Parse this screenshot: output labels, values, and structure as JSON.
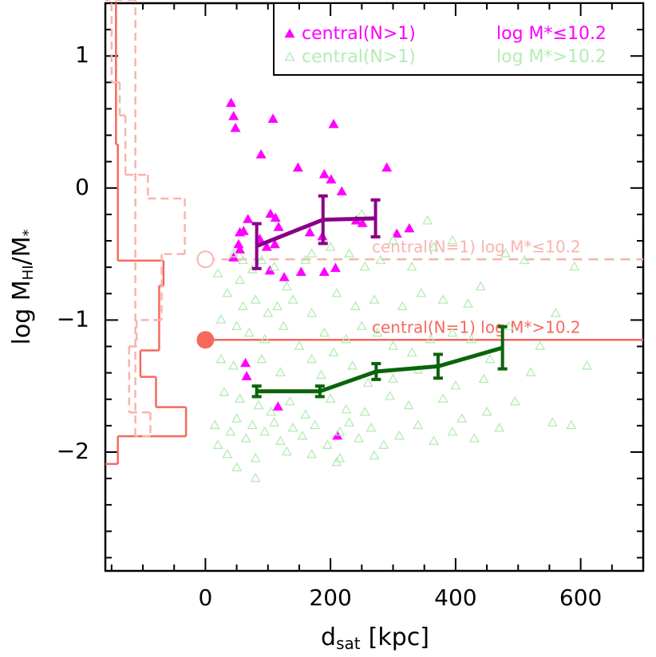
{
  "chart_data": {
    "type": "scatter",
    "xlabel": {
      "main": "d",
      "sub": "sat",
      "unit": "[kpc]"
    },
    "ylabel": {
      "main": "log M",
      "sub1": "HI",
      "mid": "/M",
      "sub2": "*"
    },
    "xlim": [
      -160,
      700
    ],
    "ylim": [
      -2.9,
      1.4
    ],
    "xticks": [
      0,
      200,
      400,
      600
    ],
    "yticks": [
      {
        "value": -2,
        "label": "−2"
      },
      {
        "value": -1,
        "label": "−1"
      },
      0,
      1
    ],
    "xminor_ticks": [
      -150,
      -100,
      -50,
      50,
      100,
      150,
      250,
      300,
      350,
      450,
      500,
      550,
      650
    ],
    "yminor_ticks": [
      -2.8,
      -2.6,
      -2.4,
      -2.2,
      -1.8,
      -1.6,
      -1.4,
      -1.2,
      -0.8,
      -0.6,
      -0.4,
      -0.2,
      0.2,
      0.4,
      0.6,
      0.8,
      1.2
    ],
    "series": [
      {
        "name": "central(N>1)",
        "group_label": "log M*≤10.2",
        "marker": "filled-triangle",
        "color": "#ff00ff",
        "x": [
          41,
          45,
          48,
          89,
          205,
          148,
          108,
          190,
          201,
          290,
          218,
          68,
          61,
          104,
          112,
          117,
          87,
          55,
          53,
          55,
          45,
          98,
          111,
          167,
          187,
          241,
          251,
          306,
          326,
          103,
          126,
          153,
          190,
          208,
          64,
          66,
          116,
          211
        ],
        "values": [
          0.64,
          0.54,
          0.45,
          0.25,
          0.48,
          0.15,
          0.52,
          0.1,
          0.06,
          0.15,
          -0.03,
          -0.24,
          -0.33,
          -0.2,
          -0.23,
          -0.3,
          -0.39,
          -0.34,
          -0.43,
          -0.47,
          -0.53,
          -0.45,
          -0.43,
          -0.34,
          -0.37,
          -0.25,
          -0.27,
          -0.35,
          -0.31,
          -0.63,
          -0.68,
          -0.64,
          -0.64,
          -0.61,
          -1.33,
          -1.43,
          -1.66,
          -1.88
        ]
      },
      {
        "name": "central(N>1)",
        "group_label": "log M*>10.2",
        "marker": "open-triangle",
        "color": "#b4ecb4",
        "x": [
          45,
          60,
          55,
          75,
          90,
          110,
          130,
          160,
          170,
          200,
          230,
          255,
          280,
          300,
          330,
          250,
          355,
          365,
          395,
          480,
          510,
          590,
          20,
          35,
          60,
          80,
          100,
          115,
          140,
          170,
          210,
          240,
          270,
          315,
          345,
          380,
          420,
          440,
          560,
          25,
          50,
          70,
          95,
          125,
          150,
          190,
          205,
          225,
          250,
          275,
          300,
          330,
          360,
          395,
          425,
          455,
          485,
          535,
          25,
          45,
          90,
          120,
          170,
          185,
          235,
          260,
          300,
          340,
          400,
          445,
          520,
          610,
          30,
          55,
          85,
          105,
          135,
          160,
          200,
          225,
          255,
          295,
          325,
          380,
          410,
          450,
          495,
          555,
          585,
          15,
          40,
          50,
          65,
          75,
          95,
          110,
          120,
          140,
          155,
          175,
          195,
          215,
          230,
          245,
          265,
          285,
          310,
          340,
          365,
          395,
          430,
          470,
          20,
          35,
          80,
          130,
          170,
          215,
          270,
          50,
          210,
          80
        ],
        "values": [
          -0.5,
          -0.55,
          -0.7,
          -0.62,
          -0.55,
          -0.6,
          -0.75,
          -0.55,
          -0.5,
          -0.45,
          -0.5,
          -0.6,
          -0.55,
          -0.4,
          -0.6,
          -0.2,
          -0.25,
          -0.45,
          -0.4,
          -0.5,
          -0.55,
          -0.6,
          -0.65,
          -0.8,
          -0.9,
          -0.85,
          -0.95,
          -0.9,
          -0.85,
          -0.95,
          -0.8,
          -0.9,
          -0.85,
          -0.9,
          -0.8,
          -0.85,
          -0.88,
          -0.75,
          -0.95,
          -1.0,
          -1.05,
          -1.1,
          -1.15,
          -1.05,
          -1.2,
          -1.1,
          -1.25,
          -1.15,
          -1.05,
          -1.1,
          -1.2,
          -1.25,
          -1.15,
          -1.1,
          -1.15,
          -1.3,
          -1.05,
          -1.2,
          -1.3,
          -1.35,
          -1.3,
          -1.4,
          -1.3,
          -1.42,
          -1.35,
          -1.48,
          -1.45,
          -1.38,
          -1.5,
          -1.45,
          -1.4,
          -1.35,
          -1.55,
          -1.6,
          -1.65,
          -1.7,
          -1.62,
          -1.72,
          -1.6,
          -1.68,
          -1.7,
          -1.58,
          -1.65,
          -1.6,
          -1.75,
          -1.7,
          -1.62,
          -1.78,
          -1.8,
          -1.8,
          -1.85,
          -1.75,
          -1.9,
          -1.8,
          -1.85,
          -1.78,
          -1.92,
          -1.82,
          -1.88,
          -1.8,
          -1.95,
          -1.85,
          -1.78,
          -1.9,
          -1.82,
          -1.95,
          -1.88,
          -1.8,
          -1.92,
          -1.85,
          -1.9,
          -1.82,
          -1.95,
          -2.02,
          -2.05,
          -2.0,
          -2.02,
          -2.05,
          -2.03,
          -2.12,
          -2.08,
          -2.2
        ]
      },
      {
        "marker": "error-line",
        "color": "#880088",
        "x": [
          82,
          188,
          272
        ],
        "values": [
          -0.44,
          -0.24,
          -0.23
        ],
        "errors": [
          0.17,
          0.18,
          0.14
        ]
      },
      {
        "marker": "error-line",
        "color": "#0a640a",
        "x": [
          82,
          183,
          273,
          372,
          475
        ],
        "values": [
          -1.54,
          -1.54,
          -1.39,
          -1.35,
          -1.21
        ],
        "errors": [
          0.04,
          0.04,
          0.06,
          0.09,
          0.16
        ]
      }
    ],
    "reference_lines": [
      {
        "label": "central(N=1) log M*≤10.2",
        "value": -0.54,
        "color": "#f7b4ae",
        "dashed": true,
        "marker": "open-circle",
        "marker_x": 0
      },
      {
        "label": "central(N=1) log M*>10.2",
        "value": -1.15,
        "color": "#f5695c",
        "dashed": false,
        "marker": "filled-circle",
        "marker_x": 0
      }
    ],
    "histograms": [
      {
        "color": "#f5695c",
        "dashed": false,
        "bins": [
          1.4,
          0.33,
          -0.55,
          -0.74,
          -1.23,
          -1.43,
          -1.66,
          -1.88,
          -2.09
        ],
        "values": [
          -143,
          -140,
          -67,
          -74,
          -104,
          -79,
          -31,
          -140
        ]
      },
      {
        "color": "#f7b4ae",
        "dashed": true,
        "bins": [
          1.4,
          0.8,
          0.55,
          0.1,
          -0.08,
          -0.5,
          -1.0,
          -1.2,
          -1.7,
          -1.88
        ],
        "values": [
          -150,
          -137,
          -128,
          -92,
          -33,
          -70,
          -110,
          -122,
          -88,
          -112
        ]
      }
    ]
  }
}
